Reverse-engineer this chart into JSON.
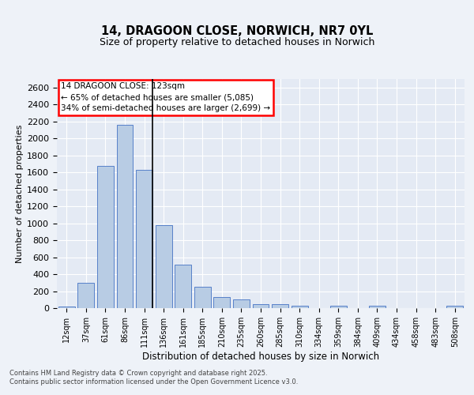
{
  "title": "14, DRAGOON CLOSE, NORWICH, NR7 0YL",
  "subtitle": "Size of property relative to detached houses in Norwich",
  "xlabel": "Distribution of detached houses by size in Norwich",
  "ylabel": "Number of detached properties",
  "categories": [
    "12sqm",
    "37sqm",
    "61sqm",
    "86sqm",
    "111sqm",
    "136sqm",
    "161sqm",
    "185sqm",
    "210sqm",
    "235sqm",
    "260sqm",
    "285sqm",
    "310sqm",
    "334sqm",
    "359sqm",
    "384sqm",
    "409sqm",
    "434sqm",
    "458sqm",
    "483sqm",
    "508sqm"
  ],
  "values": [
    22,
    295,
    1680,
    2160,
    1630,
    980,
    515,
    248,
    135,
    100,
    50,
    45,
    30,
    0,
    25,
    0,
    25,
    0,
    0,
    0,
    25
  ],
  "bar_color": "#b8cce4",
  "bar_edge_color": "#4472c4",
  "annotation_text_line1": "14 DRAGOON CLOSE: 123sqm",
  "annotation_text_line2": "← 65% of detached houses are smaller (5,085)",
  "annotation_text_line3": "34% of semi-detached houses are larger (2,699) →",
  "ylim": [
    0,
    2700
  ],
  "yticks": [
    0,
    200,
    400,
    600,
    800,
    1000,
    1200,
    1400,
    1600,
    1800,
    2000,
    2200,
    2400,
    2600
  ],
  "footer_line1": "Contains HM Land Registry data © Crown copyright and database right 2025.",
  "footer_line2": "Contains public sector information licensed under the Open Government Licence v3.0.",
  "bg_color": "#eef2f8",
  "plot_bg_color": "#e4eaf4"
}
